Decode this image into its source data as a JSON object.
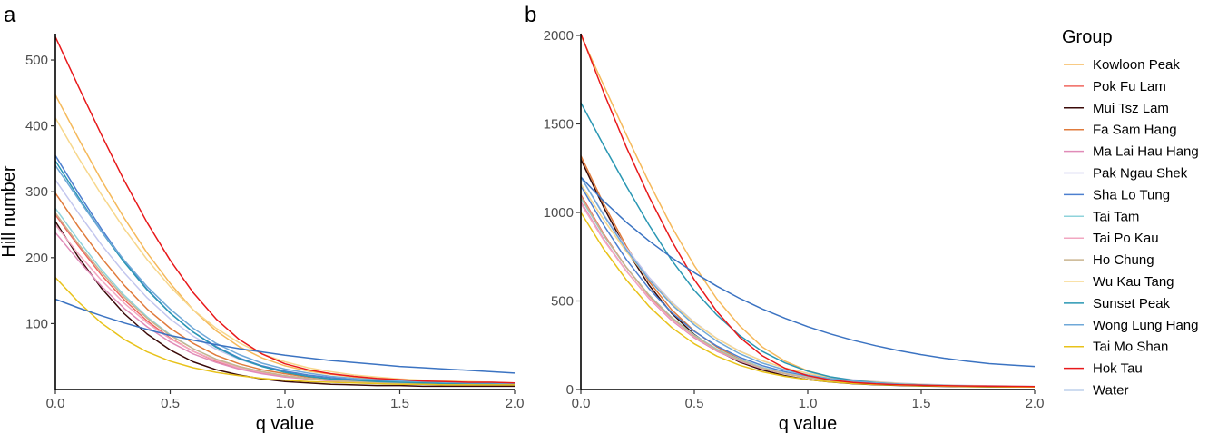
{
  "legend": {
    "title": "Group",
    "items": [
      {
        "name": "Kowloon Peak",
        "color": "#f5b95b"
      },
      {
        "name": "Pok Fu Lam",
        "color": "#f0675f"
      },
      {
        "name": "Mui Tsz Lam",
        "color": "#3a0a08"
      },
      {
        "name": "Fa Sam Hang",
        "color": "#e07b3c"
      },
      {
        "name": "Ma Lai Hau Hang",
        "color": "#e08bb8"
      },
      {
        "name": "Pak Ngau Shek",
        "color": "#c3c6ee"
      },
      {
        "name": "Sha Lo Tung",
        "color": "#4d7fcf"
      },
      {
        "name": "Tai Tam",
        "color": "#8fd3db"
      },
      {
        "name": "Tai Po Kau",
        "color": "#f2a7c1"
      },
      {
        "name": "Ho Chung",
        "color": "#c9b48f"
      },
      {
        "name": "Wu Kau Tang",
        "color": "#f7d78c"
      },
      {
        "name": "Sunset Peak",
        "color": "#2a97b3"
      },
      {
        "name": "Wong Lung Hang",
        "color": "#6fa8d8"
      },
      {
        "name": "Tai Mo Shan",
        "color": "#e8c21a"
      },
      {
        "name": "Hok Tau",
        "color": "#e8191b"
      },
      {
        "name": "Water",
        "color": "#3b73c2"
      }
    ]
  },
  "chart_data": [
    {
      "type": "line",
      "panel_label": "a",
      "xlabel": "q value",
      "ylabel": "Hill number",
      "xlim": [
        0,
        2
      ],
      "ylim": [
        0,
        540
      ],
      "xticks": [
        0,
        0.5,
        1,
        1.5,
        2
      ],
      "xtick_labels": [
        "0.0",
        "0.5",
        "1.0",
        "1.5",
        "2.0"
      ],
      "yticks": [
        100,
        200,
        300,
        400,
        500
      ],
      "ytick_labels": [
        "100",
        "200",
        "300",
        "400",
        "500"
      ],
      "grid": false,
      "x": [
        0,
        0.1,
        0.2,
        0.3,
        0.4,
        0.5,
        0.6,
        0.7,
        0.8,
        0.9,
        1.0,
        1.1,
        1.2,
        1.3,
        1.4,
        1.5,
        1.6,
        1.7,
        1.8,
        1.9,
        2.0
      ],
      "series": [
        {
          "name": "Kowloon Peak",
          "values": [
            447,
            381,
            318,
            260,
            207,
            161,
            121,
            89,
            65,
            48,
            36,
            28,
            23,
            19,
            16,
            14,
            12,
            11,
            10,
            9,
            9
          ]
        },
        {
          "name": "Pok Fu Lam",
          "values": [
            265,
            218,
            174,
            136,
            104,
            78,
            58,
            43,
            32,
            25,
            20,
            16,
            14,
            12,
            11,
            10,
            9,
            9,
            8,
            8,
            8
          ]
        },
        {
          "name": "Mui Tsz Lam",
          "values": [
            255,
            201,
            154,
            115,
            84,
            60,
            42,
            30,
            22,
            16,
            12,
            10,
            8,
            7,
            6,
            6,
            5,
            5,
            5,
            5,
            5
          ]
        },
        {
          "name": "Fa Sam Hang",
          "values": [
            298,
            247,
            200,
            158,
            122,
            93,
            70,
            52,
            39,
            30,
            24,
            19,
            16,
            14,
            12,
            11,
            10,
            10,
            9,
            9,
            9
          ]
        },
        {
          "name": "Ma Lai Hau Hang",
          "values": [
            238,
            196,
            157,
            123,
            95,
            72,
            54,
            41,
            31,
            24,
            19,
            16,
            13,
            12,
            11,
            10,
            9,
            9,
            8,
            8,
            8
          ]
        },
        {
          "name": "Pak Ngau Shek",
          "values": [
            318,
            268,
            220,
            177,
            139,
            107,
            81,
            61,
            46,
            35,
            27,
            21,
            18,
            15,
            13,
            12,
            11,
            10,
            10,
            9,
            9
          ]
        },
        {
          "name": "Sha Lo Tung",
          "values": [
            355,
            298,
            244,
            195,
            152,
            116,
            87,
            65,
            48,
            36,
            28,
            22,
            18,
            15,
            13,
            12,
            11,
            10,
            10,
            9,
            9
          ]
        },
        {
          "name": "Tai Tam",
          "values": [
            275,
            227,
            182,
            143,
            110,
            83,
            62,
            46,
            35,
            27,
            21,
            17,
            14,
            12,
            11,
            10,
            9,
            9,
            8,
            8,
            8
          ]
        },
        {
          "name": "Tai Po Kau",
          "values": [
            250,
            206,
            166,
            131,
            101,
            77,
            58,
            44,
            33,
            26,
            21,
            17,
            14,
            12,
            11,
            10,
            9,
            9,
            8,
            8,
            8
          ]
        },
        {
          "name": "Ho Chung",
          "values": [
            268,
            221,
            178,
            140,
            108,
            82,
            62,
            46,
            35,
            27,
            21,
            17,
            14,
            12,
            11,
            10,
            9,
            9,
            8,
            8,
            8
          ]
        },
        {
          "name": "Wu Kau Tang",
          "values": [
            412,
            352,
            296,
            244,
            197,
            156,
            121,
            93,
            71,
            54,
            42,
            33,
            27,
            22,
            19,
            16,
            14,
            13,
            12,
            11,
            10
          ]
        },
        {
          "name": "Sunset Peak",
          "values": [
            347,
            292,
            240,
            193,
            151,
            116,
            87,
            64,
            47,
            35,
            26,
            20,
            16,
            14,
            12,
            11,
            10,
            9,
            9,
            8,
            8
          ]
        },
        {
          "name": "Wong Lung Hang",
          "values": [
            340,
            289,
            240,
            196,
            156,
            122,
            93,
            70,
            53,
            40,
            31,
            25,
            20,
            17,
            15,
            13,
            12,
            11,
            10,
            10,
            9
          ]
        },
        {
          "name": "Tai Mo Shan",
          "values": [
            170,
            133,
            101,
            76,
            57,
            43,
            33,
            26,
            21,
            17,
            14,
            12,
            11,
            10,
            9,
            8,
            8,
            7,
            7,
            7,
            7
          ]
        },
        {
          "name": "Hok Tau",
          "values": [
            535,
            460,
            387,
            317,
            253,
            196,
            147,
            107,
            76,
            54,
            39,
            30,
            24,
            20,
            17,
            15,
            13,
            12,
            11,
            11,
            10
          ]
        },
        {
          "name": "Water",
          "values": [
            137,
            124,
            112,
            101,
            91,
            82,
            75,
            68,
            62,
            57,
            52,
            48,
            44,
            41,
            38,
            35,
            33,
            31,
            29,
            27,
            25
          ]
        }
      ]
    },
    {
      "type": "line",
      "panel_label": "b",
      "xlabel": "q value",
      "ylabel": "",
      "xlim": [
        0,
        2
      ],
      "ylim": [
        0,
        2010
      ],
      "xticks": [
        0,
        0.5,
        1,
        1.5,
        2
      ],
      "xtick_labels": [
        "0.0",
        "0.5",
        "1.0",
        "1.5",
        "2.0"
      ],
      "yticks": [
        0,
        500,
        1000,
        1500,
        2000
      ],
      "ytick_labels": [
        "0",
        "500",
        "1000",
        "1500",
        "2000"
      ],
      "grid": false,
      "x": [
        0,
        0.1,
        0.2,
        0.3,
        0.4,
        0.5,
        0.6,
        0.7,
        0.8,
        0.9,
        1.0,
        1.1,
        1.2,
        1.3,
        1.4,
        1.5,
        1.6,
        1.7,
        1.8,
        1.9,
        2.0
      ],
      "series": [
        {
          "name": "Kowloon Peak",
          "values": [
            2000,
            1720,
            1440,
            1170,
            920,
            700,
            510,
            360,
            240,
            160,
            105,
            70,
            50,
            38,
            30,
            25,
            22,
            20,
            18,
            17,
            16
          ]
        },
        {
          "name": "Pok Fu Lam",
          "values": [
            1100,
            880,
            690,
            530,
            400,
            300,
            220,
            165,
            122,
            92,
            70,
            54,
            43,
            35,
            30,
            26,
            23,
            21,
            19,
            18,
            17
          ]
        },
        {
          "name": "Mui Tsz Lam",
          "values": [
            1300,
            1030,
            790,
            590,
            430,
            310,
            220,
            155,
            110,
            78,
            56,
            42,
            33,
            27,
            23,
            20,
            18,
            16,
            15,
            14,
            14
          ]
        },
        {
          "name": "Fa Sam Hang",
          "values": [
            1320,
            1050,
            810,
            610,
            450,
            330,
            240,
            172,
            124,
            90,
            66,
            50,
            39,
            32,
            27,
            23,
            21,
            19,
            17,
            16,
            15
          ]
        },
        {
          "name": "Ma Lai Hau Hang",
          "values": [
            1060,
            850,
            670,
            515,
            390,
            292,
            216,
            160,
            118,
            88,
            67,
            52,
            41,
            33,
            28,
            24,
            21,
            19,
            18,
            17,
            16
          ]
        },
        {
          "name": "Pak Ngau Shek",
          "values": [
            1200,
            990,
            800,
            635,
            495,
            380,
            288,
            217,
            162,
            121,
            92,
            70,
            55,
            44,
            36,
            30,
            26,
            23,
            21,
            19,
            18
          ]
        },
        {
          "name": "Sha Lo Tung",
          "values": [
            1150,
            930,
            735,
            570,
            435,
            328,
            245,
            182,
            135,
            100,
            75,
            57,
            45,
            36,
            30,
            26,
            23,
            20,
            19,
            17,
            16
          ]
        },
        {
          "name": "Tai Tam",
          "values": [
            1080,
            870,
            690,
            535,
            408,
            307,
            228,
            169,
            125,
            93,
            70,
            54,
            42,
            34,
            29,
            25,
            22,
            20,
            18,
            17,
            16
          ]
        },
        {
          "name": "Tai Po Kau",
          "values": [
            1050,
            845,
            668,
            518,
            396,
            298,
            222,
            164,
            121,
            90,
            68,
            52,
            41,
            33,
            28,
            24,
            21,
            19,
            18,
            17,
            16
          ]
        },
        {
          "name": "Ho Chung",
          "values": [
            1090,
            875,
            690,
            533,
            405,
            303,
            224,
            165,
            121,
            89,
            67,
            51,
            40,
            32,
            27,
            23,
            21,
            19,
            17,
            16,
            15
          ]
        },
        {
          "name": "Wu Kau Tang",
          "values": [
            1160,
            960,
            780,
            622,
            488,
            377,
            287,
            216,
            162,
            121,
            91,
            69,
            53,
            42,
            34,
            28,
            24,
            21,
            19,
            17,
            16
          ]
        },
        {
          "name": "Sunset Peak",
          "values": [
            1620,
            1380,
            1150,
            930,
            730,
            560,
            420,
            305,
            215,
            150,
            103,
            72,
            52,
            39,
            31,
            26,
            22,
            20,
            18,
            17,
            16
          ]
        },
        {
          "name": "Wong Lung Hang",
          "values": [
            1200,
            985,
            790,
            622,
            480,
            365,
            273,
            202,
            149,
            110,
            82,
            62,
            48,
            38,
            31,
            26,
            23,
            20,
            18,
            17,
            16
          ]
        },
        {
          "name": "Tai Mo Shan",
          "values": [
            1000,
            795,
            620,
            470,
            350,
            258,
            188,
            137,
            100,
            74,
            56,
            43,
            34,
            28,
            24,
            21,
            19,
            17,
            16,
            15,
            14
          ]
        },
        {
          "name": "Hok Tau",
          "values": [
            2010,
            1680,
            1370,
            1090,
            840,
            620,
            440,
            295,
            190,
            120,
            78,
            54,
            40,
            32,
            27,
            24,
            22,
            20,
            19,
            18,
            17
          ]
        },
        {
          "name": "Water",
          "values": [
            1200,
            1065,
            945,
            840,
            745,
            660,
            583,
            515,
            455,
            402,
            355,
            314,
            278,
            247,
            220,
            197,
            177,
            160,
            146,
            138,
            130
          ]
        }
      ]
    }
  ]
}
